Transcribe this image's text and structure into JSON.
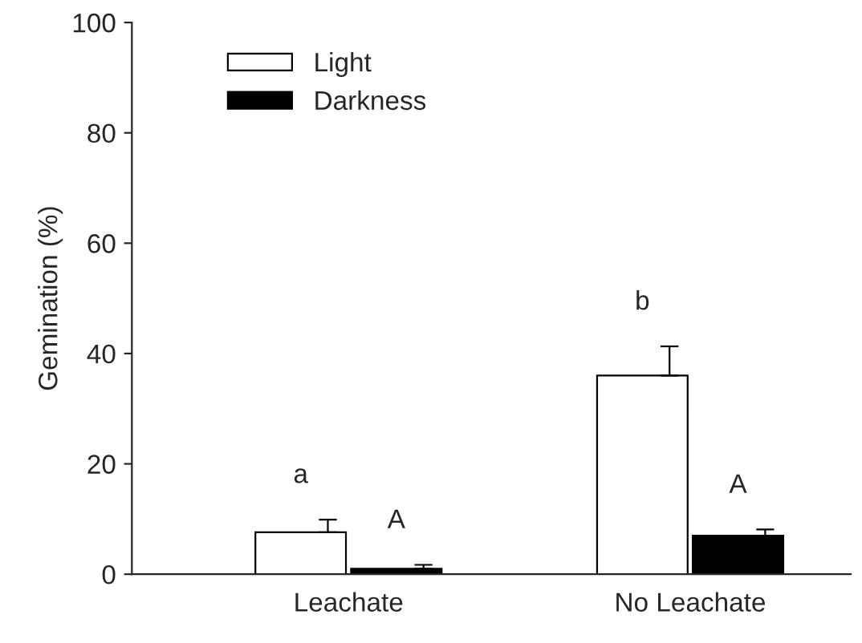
{
  "chart_data": {
    "type": "bar",
    "ylabel": "Gemination (%)",
    "categories": [
      "Leachate",
      "No Leachate"
    ],
    "series": [
      {
        "name": "Light",
        "color": "#ffffff",
        "values": [
          7.6,
          36.0
        ],
        "errors": [
          [
            7.6,
            9.9
          ],
          [
            36.0,
            41.3
          ]
        ]
      },
      {
        "name": "Darkness",
        "color": "#000000",
        "values": [
          1.0,
          7.0
        ],
        "errors": [
          [
            1.0,
            1.7
          ],
          [
            7.0,
            8.1
          ]
        ]
      }
    ],
    "ylim": [
      0,
      100
    ],
    "yticks": [
      0,
      20,
      40,
      60,
      80,
      100
    ],
    "grid": false,
    "legend": "top left",
    "annotations": [
      "a",
      "A",
      "b",
      "A"
    ]
  }
}
